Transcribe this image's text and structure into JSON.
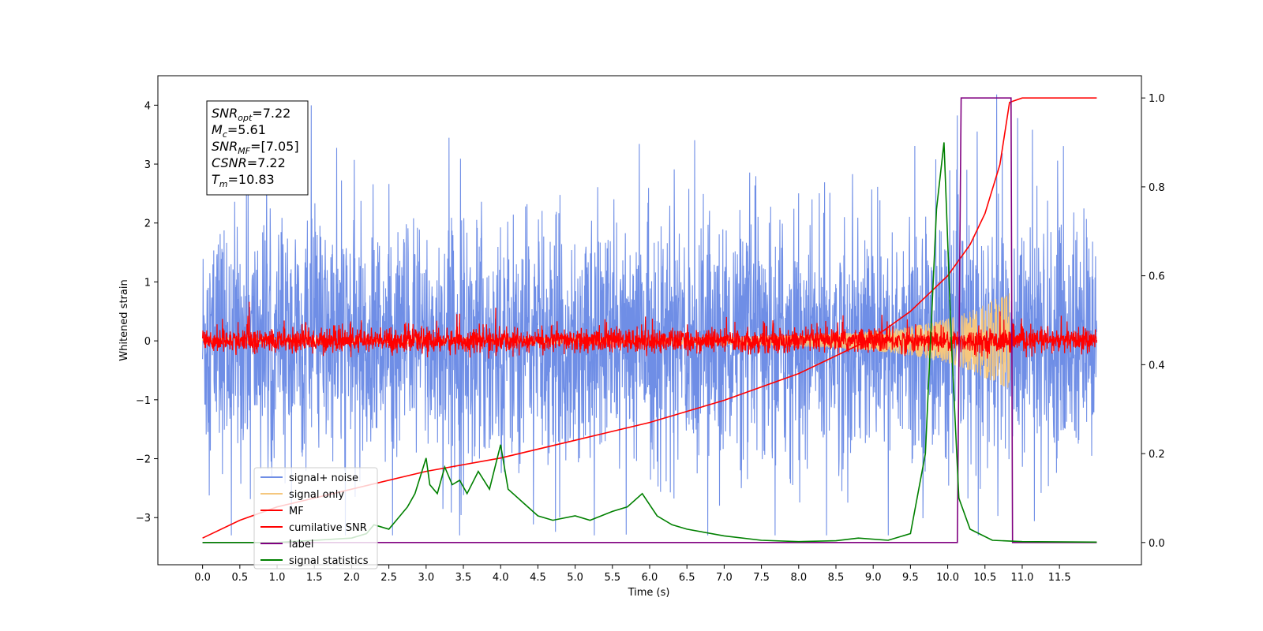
{
  "chart_data": {
    "type": "line",
    "xlabel": "Time (s)",
    "ylabel": "Whitened strain",
    "xlim": [
      -0.6,
      12.6
    ],
    "ylim": [
      -3.8,
      4.5
    ],
    "y2lim": [
      -0.05,
      1.05
    ],
    "xticks": [
      "0.0",
      "0.5",
      "1.0",
      "1.5",
      "2.0",
      "2.5",
      "3.0",
      "3.5",
      "4.0",
      "4.5",
      "5.0",
      "5.5",
      "6.0",
      "6.5",
      "7.0",
      "7.5",
      "8.0",
      "8.5",
      "9.0",
      "9.5",
      "10.0",
      "10.5",
      "11.0",
      "11.5"
    ],
    "yticks": [
      "−3",
      "−2",
      "−1",
      "0",
      "1",
      "2",
      "3",
      "4"
    ],
    "y2ticks": [
      "0.0",
      "0.2",
      "0.4",
      "0.6",
      "0.8",
      "1.0"
    ],
    "info_box": [
      {
        "base": "SNR",
        "sub": "opt",
        "value": "=7.22"
      },
      {
        "base": "M",
        "sub": "c",
        "value": "=5.61"
      },
      {
        "base": "SNR",
        "sub": "MF",
        "value": "=[7.05]"
      },
      {
        "base": "CSNR",
        "sub": "",
        "value": "=7.22"
      },
      {
        "base": "T",
        "sub": "m",
        "value": "=10.83"
      }
    ],
    "legend_position": "lower-left",
    "series": [
      {
        "name": "signal+ noise",
        "color": "#6f8ee6",
        "axis": "left",
        "kind": "noise",
        "x_range": [
          0.0,
          12.0
        ],
        "envelope": [
          -3.3,
          4.2
        ]
      },
      {
        "name": "signal only",
        "color": "#f5c77e",
        "axis": "left",
        "kind": "chirp",
        "x_range": [
          0.0,
          10.83
        ],
        "peak_amplitude": 0.6
      },
      {
        "name": "MF",
        "color": "#ff0000",
        "axis": "left",
        "kind": "noise",
        "x_range": [
          0.0,
          12.0
        ],
        "envelope": [
          -0.3,
          0.7
        ]
      },
      {
        "name": "cumilative SNR",
        "color": "#ff0000",
        "axis": "right",
        "x": [
          0.0,
          0.5,
          1.0,
          2.0,
          3.0,
          4.0,
          5.0,
          6.0,
          7.0,
          8.0,
          9.0,
          9.5,
          10.0,
          10.3,
          10.5,
          10.7,
          10.83,
          11.0,
          12.0
        ],
        "y": [
          0.01,
          0.05,
          0.08,
          0.12,
          0.16,
          0.19,
          0.23,
          0.27,
          0.32,
          0.38,
          0.46,
          0.52,
          0.6,
          0.67,
          0.74,
          0.85,
          0.99,
          1.0,
          1.0
        ]
      },
      {
        "name": "label",
        "color": "#800080",
        "axis": "right",
        "x": [
          0.0,
          10.13,
          10.18,
          10.85,
          10.87,
          12.0
        ],
        "y": [
          0.0,
          0.0,
          1.0,
          1.0,
          0.0,
          0.0
        ]
      },
      {
        "name": "signal statistics",
        "color": "#008000",
        "axis": "right",
        "x": [
          0.0,
          1.0,
          2.0,
          2.2,
          2.3,
          2.5,
          2.6,
          2.75,
          2.85,
          3.0,
          3.05,
          3.15,
          3.25,
          3.35,
          3.45,
          3.55,
          3.7,
          3.85,
          4.0,
          4.1,
          4.3,
          4.5,
          4.7,
          5.0,
          5.2,
          5.5,
          5.7,
          5.9,
          6.1,
          6.3,
          6.5,
          7.0,
          7.5,
          8.0,
          8.5,
          8.8,
          9.2,
          9.5,
          9.7,
          9.85,
          9.95,
          10.05,
          10.15,
          10.3,
          10.6,
          11.0,
          12.0
        ],
        "y": [
          0.0,
          0.0,
          0.01,
          0.02,
          0.04,
          0.03,
          0.05,
          0.08,
          0.11,
          0.19,
          0.13,
          0.11,
          0.17,
          0.13,
          0.14,
          0.11,
          0.16,
          0.12,
          0.22,
          0.12,
          0.09,
          0.06,
          0.05,
          0.06,
          0.05,
          0.07,
          0.08,
          0.11,
          0.06,
          0.04,
          0.03,
          0.015,
          0.005,
          0.002,
          0.004,
          0.01,
          0.005,
          0.02,
          0.2,
          0.75,
          0.9,
          0.45,
          0.1,
          0.03,
          0.005,
          0.002,
          0.001
        ]
      }
    ]
  }
}
